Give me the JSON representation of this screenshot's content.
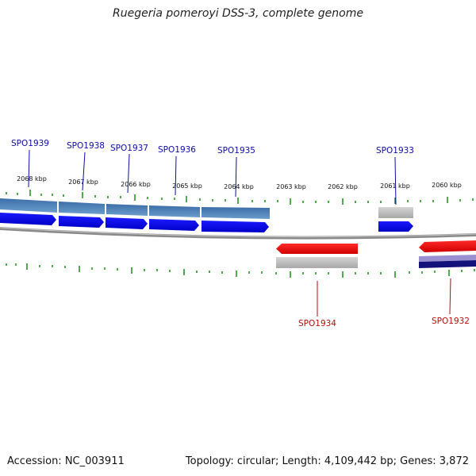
{
  "title": "Ruegeria pomeroyi DSS-3, complete genome",
  "footer": {
    "accession": "Accession: NC_003911",
    "summary": "Topology: circular; Length: 4,109,442 bp; Genes: 3,872"
  },
  "ruler_labels": [
    "2068 kbp",
    "2067 kbp",
    "2066 kbp",
    "2065 kbp",
    "2064 kbp",
    "2063 kbp",
    "2062 kbp",
    "2061 kbp",
    "2060 kbp"
  ],
  "genes": [
    {
      "id": "SPO1939",
      "strand": "forward"
    },
    {
      "id": "SPO1938",
      "strand": "forward"
    },
    {
      "id": "SPO1937",
      "strand": "forward"
    },
    {
      "id": "SPO1936",
      "strand": "forward"
    },
    {
      "id": "SPO1935",
      "strand": "forward"
    },
    {
      "id": "SPO1934",
      "strand": "reverse"
    },
    {
      "id": "SPO1933",
      "strand": "forward"
    },
    {
      "id": "SPO1932",
      "strand": "reverse"
    }
  ],
  "colors": {
    "forward_gene": "#0a0af0",
    "reverse_gene": "#f00000",
    "forward_block": "#4a7fb5",
    "reverse_block_a": "#9a8fd0",
    "reverse_block_b": "#12127a",
    "pseudo_block": "#b8b8b8",
    "backbone": "#8a8a8a",
    "ticks": "#1a8a1a"
  }
}
